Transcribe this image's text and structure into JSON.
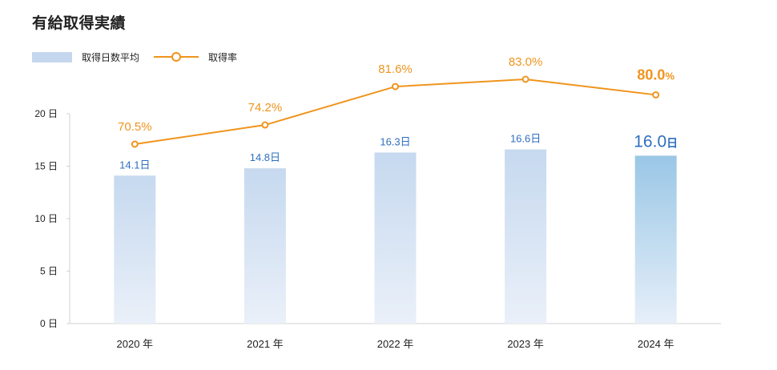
{
  "title": "有給取得実績",
  "legend": {
    "bar_label": "取得日数平均",
    "line_label": "取得率"
  },
  "colors": {
    "bar": "#c5d7ee",
    "bar_highlight": "#9fc9e6",
    "line": "#f0941d",
    "bar_text": "#2f6fbf"
  },
  "chart_data": {
    "type": "bar",
    "categories": [
      "2020 年",
      "2021 年",
      "2022 年",
      "2023 年",
      "2024 年"
    ],
    "y_ticks": [
      "0 日",
      "5 日",
      "10 日",
      "15 日",
      "20 日"
    ],
    "ylim": [
      0,
      20
    ],
    "series": [
      {
        "name": "取得日数平均",
        "type": "bar",
        "values": [
          14.1,
          14.8,
          16.3,
          16.6,
          16.0
        ],
        "labels": [
          "14.1日",
          "14.8日",
          "16.3日",
          "16.6日",
          "16.0"
        ],
        "highlight_unit": "日"
      },
      {
        "name": "取得率",
        "type": "line",
        "values": [
          70.5,
          74.2,
          81.6,
          83.0,
          80.0
        ],
        "labels": [
          "70.5%",
          "74.2%",
          "81.6%",
          "83.0%",
          "80.0"
        ],
        "highlight_unit": "%"
      }
    ],
    "highlight_index": 4,
    "grid": false
  }
}
